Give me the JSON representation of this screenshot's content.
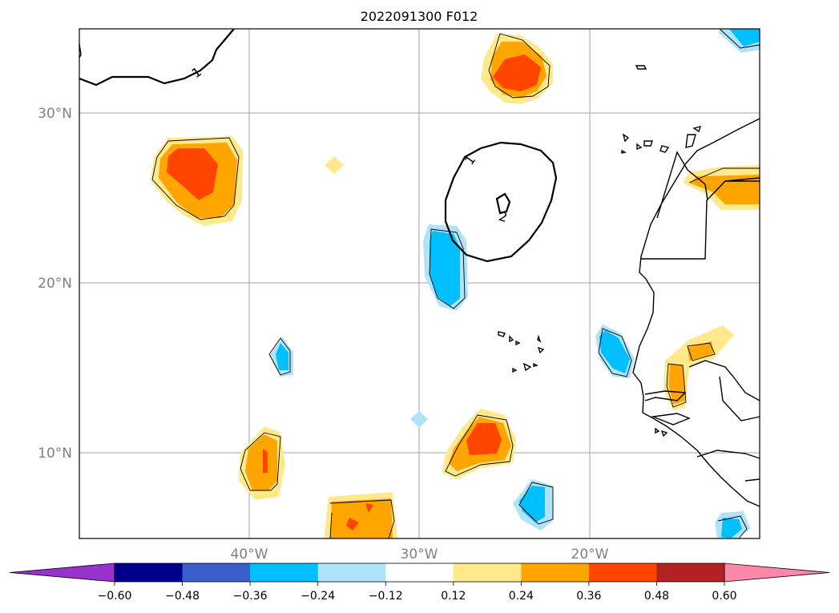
{
  "title": "2022091300 F012",
  "map": {
    "lon_range": [
      -50,
      -10
    ],
    "lat_range": [
      5,
      35
    ],
    "lat_ticks": [
      {
        "value": 30,
        "label": "30°N"
      },
      {
        "value": 20,
        "label": "20°N"
      },
      {
        "value": 10,
        "label": "10°N"
      }
    ],
    "lon_ticks": [
      {
        "value": -40,
        "label": "40°W"
      },
      {
        "value": -30,
        "label": "30°W"
      },
      {
        "value": -20,
        "label": "20°W"
      }
    ],
    "contour_labels": [
      "1",
      "1",
      "2"
    ]
  },
  "colorbar": {
    "ticks": [
      "−0.60",
      "−0.48",
      "−0.36",
      "−0.24",
      "−0.12",
      "0.12",
      "0.24",
      "0.36",
      "0.48",
      "0.60"
    ],
    "colors": {
      "under": "#9932cc",
      "bins": [
        "#00008b",
        "#3a5fcd",
        "#00bfff",
        "#afe3fa",
        "#ffffff",
        "#ffe98a",
        "#ffa500",
        "#ff4500",
        "#b22222"
      ],
      "over": "#ff88aa"
    }
  }
}
